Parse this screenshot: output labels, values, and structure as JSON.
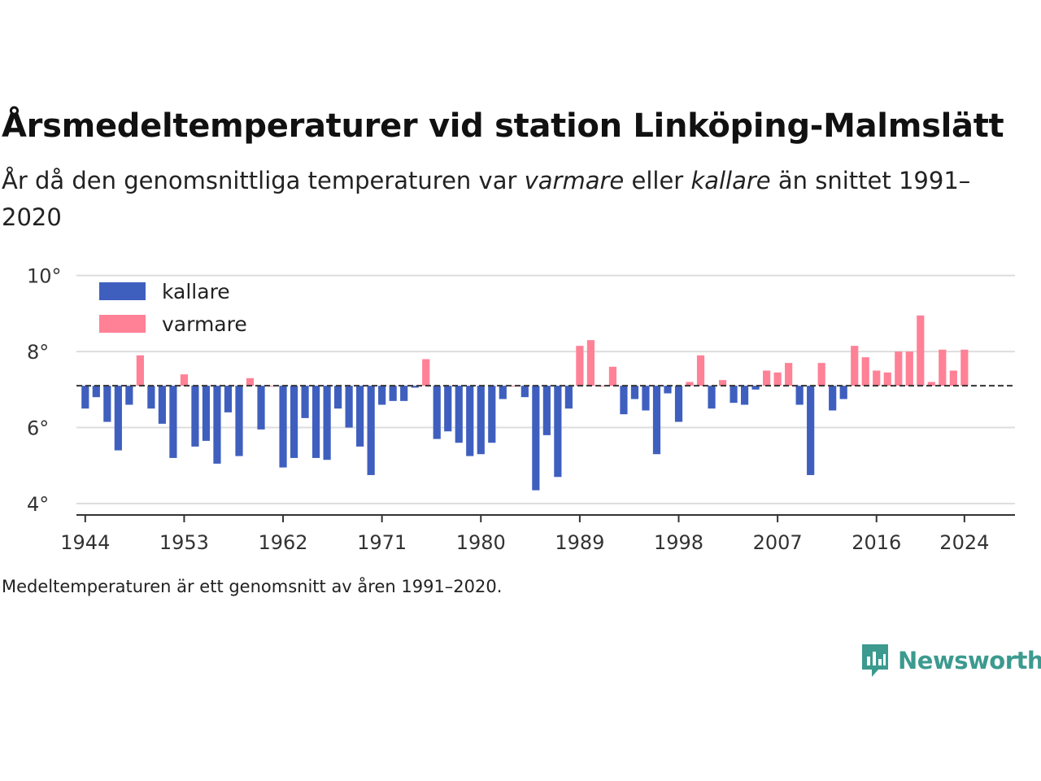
{
  "title": "Årsmedeltemperaturer vid station Linköping-Malmslätt",
  "subtitle": {
    "part1": "År då den genomsnittliga temperaturen var ",
    "warm_word": "varmare",
    "part2": " eller ",
    "cold_word": "kallare",
    "part3": " än snittet 1991–2020"
  },
  "footnote": "Medeltemperaturen är ett genomsnitt av åren 1991–2020.",
  "brand": {
    "name": "Newsworthy",
    "icon": "newsworthy-logo-icon"
  },
  "colors": {
    "kallare": "#3f5fbf",
    "varmare": "#ff8196",
    "reference_line": "#333333",
    "grid": "#dddddd",
    "brand": "#3c9a8f"
  },
  "chart_data": {
    "type": "bar",
    "baseline": 7.1,
    "ylim": [
      3.7,
      10.4
    ],
    "yticks": [
      4,
      6,
      8,
      10
    ],
    "ytick_labels": [
      "4°",
      "6°",
      "8°",
      "10°"
    ],
    "xticks": [
      1944,
      1953,
      1962,
      1971,
      1980,
      1989,
      1998,
      2007,
      2016,
      2024
    ],
    "xlim": [
      1943.2,
      2028.6
    ],
    "grid": true,
    "legend": {
      "position": "top-left",
      "items": [
        {
          "name": "kallare",
          "key": "kallare"
        },
        {
          "name": "varmare",
          "key": "varmare"
        }
      ]
    },
    "years": [
      1944,
      1945,
      1946,
      1947,
      1948,
      1949,
      1950,
      1951,
      1952,
      1953,
      1954,
      1955,
      1956,
      1957,
      1958,
      1959,
      1960,
      1961,
      1962,
      1963,
      1964,
      1965,
      1966,
      1967,
      1968,
      1969,
      1970,
      1971,
      1972,
      1973,
      1974,
      1975,
      1976,
      1977,
      1978,
      1979,
      1980,
      1981,
      1982,
      1983,
      1984,
      1985,
      1986,
      1987,
      1988,
      1989,
      1990,
      1991,
      1992,
      1993,
      1994,
      1995,
      1996,
      1997,
      1998,
      1999,
      2000,
      2001,
      2002,
      2003,
      2004,
      2005,
      2006,
      2007,
      2008,
      2009,
      2010,
      2011,
      2012,
      2013,
      2014,
      2015,
      2016,
      2017,
      2018,
      2019,
      2020,
      2021,
      2022,
      2023,
      2024
    ],
    "values": [
      6.5,
      6.8,
      6.15,
      5.4,
      6.6,
      7.9,
      6.5,
      6.1,
      5.2,
      7.4,
      5.5,
      5.65,
      5.05,
      6.4,
      5.25,
      7.3,
      5.95,
      7.1,
      4.95,
      5.2,
      6.25,
      5.2,
      5.15,
      6.5,
      6.0,
      5.5,
      4.75,
      6.6,
      6.7,
      6.7,
      7.05,
      7.8,
      5.7,
      5.9,
      5.6,
      5.25,
      5.3,
      5.6,
      6.75,
      7.1,
      6.8,
      4.35,
      5.8,
      4.7,
      6.5,
      8.15,
      8.3,
      7.1,
      7.6,
      6.35,
      6.75,
      6.45,
      5.3,
      6.9,
      6.15,
      7.2,
      7.9,
      6.5,
      7.25,
      6.65,
      6.6,
      7.0,
      7.5,
      7.45,
      7.7,
      6.6,
      4.75,
      7.7,
      6.45,
      6.75,
      8.15,
      7.85,
      7.5,
      7.45,
      8.0,
      8.0,
      8.95,
      7.2,
      8.05,
      7.5,
      8.05
    ]
  }
}
